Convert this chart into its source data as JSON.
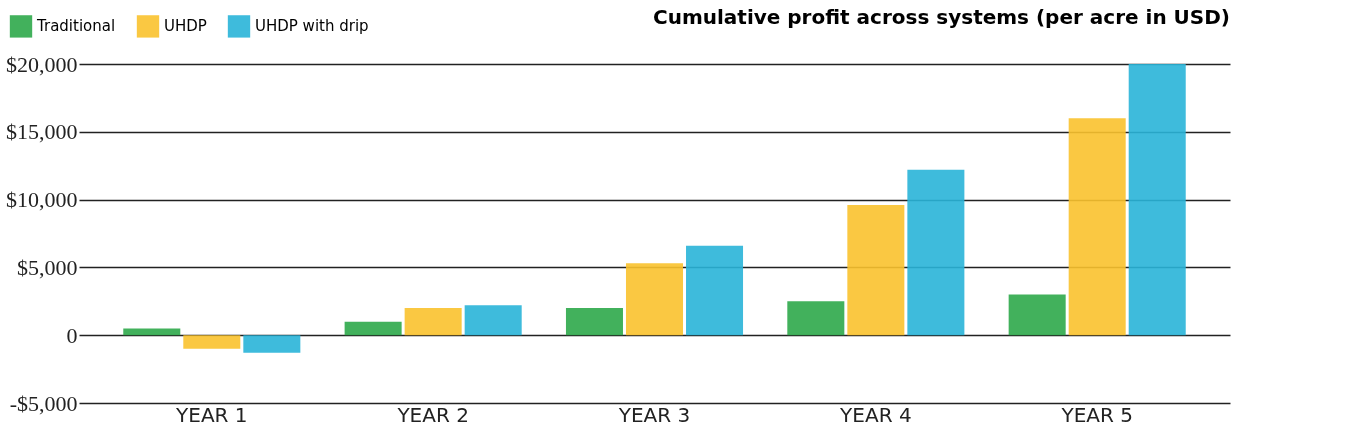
{
  "chart_data": {
    "type": "bar",
    "title": "Cumulative profit across systems (per acre in USD)",
    "categories": [
      "YEAR 1",
      "YEAR 2",
      "YEAR 3",
      "YEAR 4",
      "YEAR 5"
    ],
    "series": [
      {
        "name": "Traditional",
        "color": "#2ea84a",
        "values": [
          500,
          1000,
          2000,
          2500,
          3000
        ]
      },
      {
        "name": "UHDP",
        "color": "#f9c22e",
        "values": [
          -1000,
          2000,
          5300,
          9600,
          16000
        ]
      },
      {
        "name": "UHDP with drip",
        "color": "#29b4d8",
        "values": [
          -1300,
          2200,
          6600,
          12200,
          20000
        ]
      }
    ],
    "ylim": [
      -5000,
      20000
    ],
    "yticks": [
      {
        "value": -5000,
        "label": "-$5,000"
      },
      0,
      {
        "value": 5000,
        "label": "$5,000"
      },
      {
        "value": 10000,
        "label": "$10,000"
      },
      {
        "value": 15000,
        "label": "$15,000"
      },
      {
        "value": 20000,
        "label": "$20,000"
      }
    ],
    "grid": "y",
    "legend": "top left"
  }
}
